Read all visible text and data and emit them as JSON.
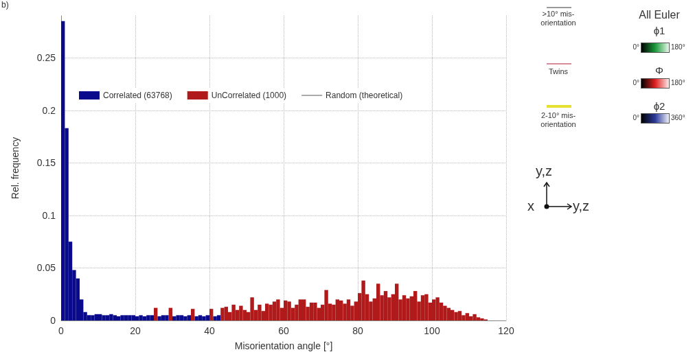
{
  "chart_data": {
    "type": "histogram",
    "xlabel": "Misorientation angle [°]",
    "ylabel": "Rel. frequency",
    "bins": [
      0,
      1,
      2,
      3,
      4,
      5,
      6,
      7,
      8,
      9,
      10,
      11,
      12,
      13,
      14,
      15,
      16,
      17,
      18,
      19,
      20,
      21,
      22,
      23,
      24,
      25,
      26,
      27,
      28,
      29,
      30,
      31,
      32,
      33,
      34,
      35,
      36,
      37,
      38,
      39,
      40,
      41,
      42,
      43,
      44,
      45,
      46,
      47,
      48,
      49,
      50,
      51,
      52,
      53,
      54,
      55,
      56,
      57,
      58,
      59,
      60,
      61,
      62,
      63,
      64,
      65,
      66,
      67,
      68,
      69,
      70,
      71,
      72,
      73,
      74,
      75,
      76,
      77,
      78,
      79,
      80,
      81,
      82,
      83,
      84,
      85,
      86,
      87,
      88,
      89,
      90,
      91,
      92,
      93,
      94,
      95,
      96,
      97,
      98,
      99,
      100,
      101,
      102,
      103,
      104,
      105,
      106,
      107,
      108,
      109,
      110,
      111,
      112,
      113,
      114,
      115
    ],
    "series": [
      {
        "name": "Correlated (63768)",
        "color": "#0a0a8c",
        "values": [
          0.285,
          0.183,
          0.075,
          0.048,
          0.04,
          0.02,
          0.008,
          0.005,
          0.005,
          0.006,
          0.006,
          0.005,
          0.005,
          0.006,
          0.005,
          0.004,
          0.005,
          0.005,
          0.005,
          0.005,
          0.004,
          0.005,
          0.004,
          0.005,
          0.005,
          null,
          0.004,
          0.005,
          0.005,
          null,
          0.004,
          0.005,
          0.005,
          0.004,
          0.005,
          null,
          0.004,
          0.005,
          0.004,
          0.005,
          null,
          0.004,
          0.005,
          null,
          null,
          null,
          null,
          null,
          null,
          null,
          null,
          null,
          null,
          null,
          null,
          null,
          null,
          null,
          null,
          null,
          null,
          null,
          null,
          null,
          null,
          null,
          null,
          null,
          null,
          null,
          null,
          null,
          null,
          null,
          null,
          null,
          null,
          null,
          null,
          null,
          null,
          null,
          null,
          null,
          null,
          null,
          null,
          null,
          null,
          null,
          null,
          null,
          null,
          null,
          null,
          null,
          null,
          null,
          null,
          null,
          null,
          null,
          null,
          null,
          null,
          null,
          null,
          null,
          null,
          null,
          null,
          null,
          null,
          null,
          null
        ]
      },
      {
        "name": "UnCorrelated (1000)",
        "color": "#b01a1a",
        "values": [
          null,
          null,
          null,
          null,
          null,
          null,
          null,
          null,
          null,
          null,
          null,
          null,
          null,
          null,
          null,
          null,
          null,
          null,
          null,
          null,
          null,
          null,
          null,
          null,
          null,
          0.012,
          null,
          null,
          null,
          0.012,
          null,
          null,
          null,
          null,
          null,
          0.011,
          null,
          null,
          null,
          null,
          0.011,
          null,
          null,
          0.012,
          0.013,
          0.008,
          0.015,
          0.01,
          0.014,
          0.01,
          0.008,
          0.022,
          0.01,
          0.015,
          0.009,
          0.016,
          0.015,
          0.018,
          0.02,
          0.012,
          0.019,
          0.018,
          0.012,
          0.015,
          0.02,
          0.02,
          0.013,
          0.017,
          0.017,
          0.012,
          0.015,
          0.029,
          0.016,
          0.015,
          0.02,
          0.019,
          0.016,
          0.02,
          0.014,
          0.018,
          0.026,
          0.038,
          0.025,
          0.018,
          0.021,
          0.035,
          0.024,
          0.028,
          0.022,
          0.025,
          0.035,
          0.02,
          0.024,
          0.021,
          0.023,
          0.028,
          0.018,
          0.024,
          0.025,
          0.017,
          0.02,
          0.022,
          0.017,
          0.014,
          0.012,
          0.01,
          0.008,
          0.009,
          0.005,
          0.007,
          0.004,
          0.006,
          0.003,
          0.002,
          0.001
        ]
      },
      {
        "name": "Random (theoretical)",
        "type": "line",
        "color": "#555555"
      }
    ],
    "xlim": [
      0,
      120
    ],
    "xticks": [
      0,
      20,
      40,
      60,
      80,
      100,
      120
    ],
    "ylim": [
      0,
      0.29
    ],
    "yticks": [
      0,
      0.05,
      0.1,
      0.15,
      0.2,
      0.25
    ],
    "grid": true,
    "legend": "top left",
    "annotations": [
      "b)",
      ">10° mis-orientation",
      "Twins",
      "2-10° mis-orientation",
      "All Euler",
      "ϕ1",
      "0°",
      "180°",
      "Φ",
      "0°",
      "180°",
      "ϕ2",
      "0°",
      "360°",
      "y,z",
      "x",
      "y,z"
    ]
  }
}
